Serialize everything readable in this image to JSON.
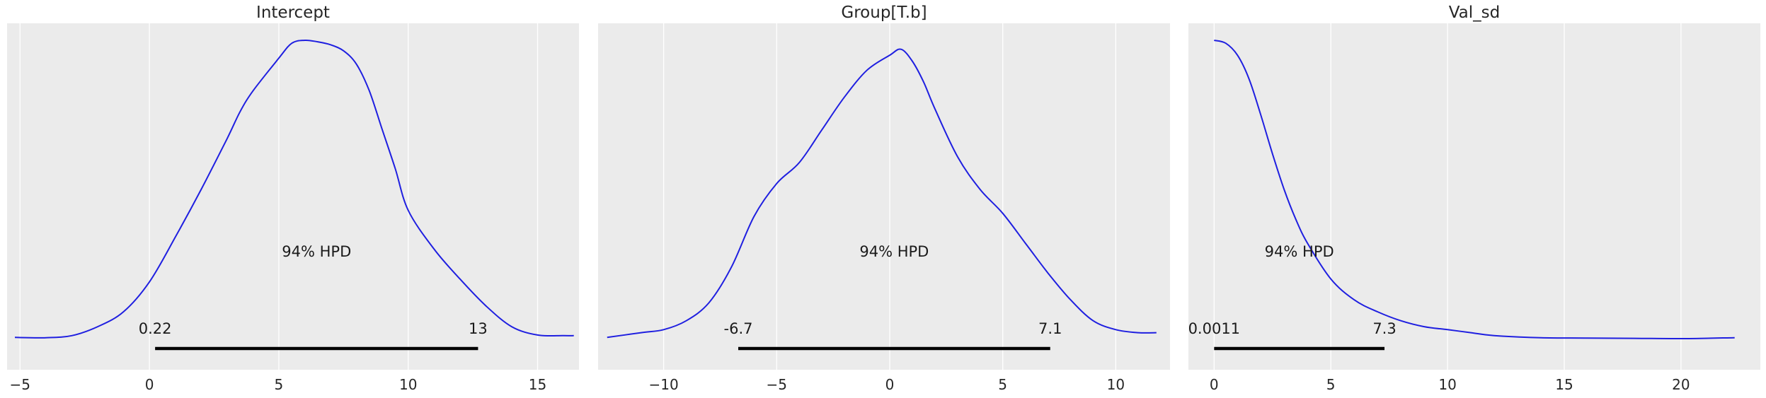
{
  "chart_data": [
    {
      "type": "line",
      "title": "Intercept",
      "xlim": [
        -5.5,
        16.6
      ],
      "xticks": [
        -5,
        0,
        5,
        10,
        15
      ],
      "xtick_labels": [
        "−5",
        "0",
        "5",
        "10",
        "15"
      ],
      "grid": true,
      "line_color": "#1f1fe0",
      "density": {
        "x": [
          -5.2,
          -4.0,
          -3.0,
          -2.0,
          -1.0,
          0.0,
          1.0,
          2.0,
          3.0,
          3.5,
          4.0,
          5.0,
          5.5,
          6.0,
          6.5,
          7.0,
          7.5,
          8.0,
          8.5,
          9.0,
          9.5,
          10.0,
          11.0,
          12.0,
          13.0,
          14.0,
          15.0,
          16.0,
          16.4
        ],
        "y": [
          0.004,
          0.003,
          0.01,
          0.04,
          0.09,
          0.19,
          0.34,
          0.5,
          0.67,
          0.76,
          0.83,
          0.94,
          0.99,
          1.0,
          0.995,
          0.985,
          0.965,
          0.92,
          0.83,
          0.7,
          0.57,
          0.43,
          0.3,
          0.2,
          0.11,
          0.04,
          0.012,
          0.01,
          0.01
        ]
      },
      "hpd_label": "94% HPD",
      "hpd_interval": [
        0.22,
        12.7
      ],
      "hpd_low_label": "0.22",
      "hpd_high_label": "13"
    },
    {
      "type": "line",
      "title": "Group[T.b]",
      "xlim": [
        -12.9,
        12.4
      ],
      "xticks": [
        -10,
        -5,
        0,
        5,
        10
      ],
      "xtick_labels": [
        "−10",
        "−5",
        "0",
        "5",
        "10"
      ],
      "grid": true,
      "line_color": "#1f1fe0",
      "density": {
        "x": [
          -12.5,
          -11.0,
          -10.0,
          -9.0,
          -8.0,
          -7.0,
          -6.0,
          -5.0,
          -4.0,
          -3.0,
          -2.0,
          -1.0,
          0.0,
          0.5,
          1.0,
          1.5,
          2.0,
          3.0,
          4.0,
          5.0,
          6.0,
          7.0,
          8.0,
          9.0,
          10.0,
          11.0,
          11.8
        ],
        "y": [
          0.004,
          0.02,
          0.03,
          0.06,
          0.12,
          0.24,
          0.41,
          0.52,
          0.59,
          0.7,
          0.81,
          0.9,
          0.95,
          0.97,
          0.93,
          0.86,
          0.77,
          0.61,
          0.5,
          0.42,
          0.32,
          0.22,
          0.13,
          0.06,
          0.03,
          0.02,
          0.02
        ]
      },
      "hpd_label": "94% HPD",
      "hpd_interval": [
        -6.7,
        7.1
      ],
      "hpd_low_label": "-6.7",
      "hpd_high_label": "7.1"
    },
    {
      "type": "line",
      "title": "Val_sd",
      "xlim": [
        -1.1,
        23.4
      ],
      "xticks": [
        0,
        5,
        10,
        15,
        20
      ],
      "xtick_labels": [
        "0",
        "5",
        "10",
        "15",
        "20"
      ],
      "grid": true,
      "line_color": "#1f1fe0",
      "density": {
        "x": [
          0.0,
          0.5,
          1.0,
          1.5,
          2.0,
          2.5,
          3.0,
          3.5,
          4.0,
          5.0,
          6.0,
          7.0,
          8.0,
          9.0,
          10.0,
          11.0,
          12.0,
          14.0,
          16.0,
          18.0,
          20.0,
          22.3
        ],
        "y": [
          1.0,
          0.99,
          0.95,
          0.87,
          0.75,
          0.62,
          0.5,
          0.4,
          0.32,
          0.2,
          0.13,
          0.09,
          0.06,
          0.04,
          0.03,
          0.02,
          0.01,
          0.003,
          0.002,
          0.001,
          0.0,
          0.003
        ]
      },
      "hpd_label": "94% HPD",
      "hpd_interval": [
        0.0011,
        7.3
      ],
      "hpd_low_label": "0.0011",
      "hpd_high_label": "7.3"
    }
  ]
}
